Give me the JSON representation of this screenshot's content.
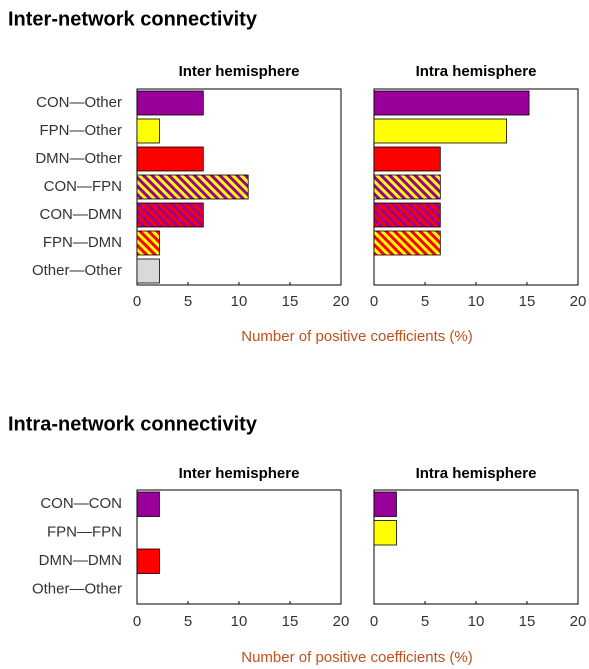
{
  "chart_data": [
    {
      "type": "barh",
      "title": "Inter-network connectivity",
      "xlabel": "Number of positive coefficients (%)",
      "categories": [
        "CON—Other",
        "FPN—Other",
        "DMN—Other",
        "CON—FPN",
        "CON—DMN",
        "FPN—DMN",
        "Other—Other"
      ],
      "colors": [
        [
          "#990099"
        ],
        [
          "#ffff00"
        ],
        [
          "#ff0000"
        ],
        [
          "#990099",
          "#ffff00"
        ],
        [
          "#990099",
          "#ff0000"
        ],
        [
          "#ff0000",
          "#ffff00"
        ],
        [
          "#d9d9d9"
        ]
      ],
      "xlim": [
        0,
        20
      ],
      "xticks": [
        0,
        5,
        10,
        15,
        20
      ],
      "panels": [
        {
          "title": "Inter hemisphere",
          "values": [
            6.5,
            2.2,
            6.5,
            10.9,
            6.5,
            2.2,
            2.2
          ]
        },
        {
          "title": "Intra hemisphere",
          "values": [
            15.2,
            13.0,
            6.5,
            6.5,
            6.5,
            6.5,
            0
          ]
        }
      ]
    },
    {
      "type": "barh",
      "title": "Intra-network connectivity",
      "xlabel": "Number of positive coefficients (%)",
      "categories": [
        "CON—CON",
        "FPN—FPN",
        "DMN—DMN",
        "Other—Other"
      ],
      "colors": [
        [
          "#990099"
        ],
        [
          "#ffff00"
        ],
        [
          "#ff0000"
        ],
        [
          "#d9d9d9"
        ]
      ],
      "xlim": [
        0,
        20
      ],
      "xticks": [
        0,
        5,
        10,
        15,
        20
      ],
      "panels": [
        {
          "title": "Inter hemisphere",
          "values": [
            2.2,
            0,
            2.2,
            0
          ]
        },
        {
          "title": "Intra hemisphere",
          "values": [
            2.2,
            2.2,
            0,
            0
          ]
        }
      ]
    }
  ]
}
